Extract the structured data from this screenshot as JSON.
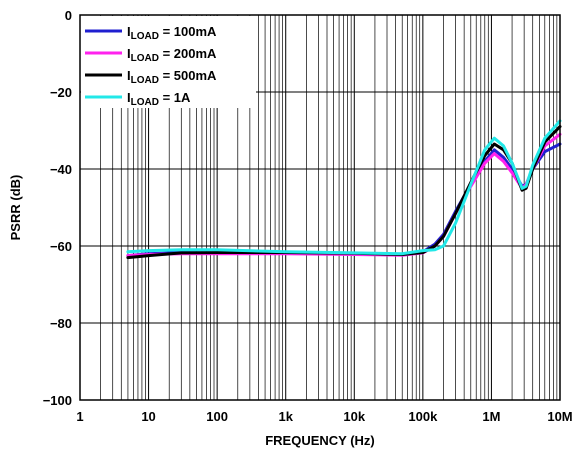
{
  "chart_data": {
    "type": "line",
    "title": "",
    "xlabel": "FREQUENCY (Hz)",
    "ylabel": "PSRR (dB)",
    "x_scale": "log",
    "xlim": [
      1,
      10000000
    ],
    "ylim": [
      -100,
      0
    ],
    "grid": true,
    "legend_position": "top-left",
    "x_ticks": [
      {
        "value": 1,
        "label": "1"
      },
      {
        "value": 10,
        "label": "10"
      },
      {
        "value": 100,
        "label": "100"
      },
      {
        "value": 1000,
        "label": "1k"
      },
      {
        "value": 10000,
        "label": "10k"
      },
      {
        "value": 100000,
        "label": "100k"
      },
      {
        "value": 1000000,
        "label": "1M"
      },
      {
        "value": 10000000,
        "label": "10M"
      }
    ],
    "y_ticks": [
      {
        "value": 0,
        "label": "0"
      },
      {
        "value": -20,
        "label": "−20"
      },
      {
        "value": -40,
        "label": "−40"
      },
      {
        "value": -60,
        "label": "−60"
      },
      {
        "value": -80,
        "label": "−80"
      },
      {
        "value": -100,
        "label": "−100"
      }
    ],
    "series": [
      {
        "name_main": "I",
        "name_sub": "LOAD",
        "name_rest": " = 100mA",
        "color": "#1f1fd0",
        "points": [
          [
            5,
            -62.5
          ],
          [
            10,
            -62
          ],
          [
            30,
            -61.7
          ],
          [
            100,
            -61.8
          ],
          [
            1000,
            -61.8
          ],
          [
            10000,
            -62
          ],
          [
            50000,
            -62.2
          ],
          [
            100000,
            -61.5
          ],
          [
            150000,
            -59.5
          ],
          [
            200000,
            -57
          ],
          [
            300000,
            -51
          ],
          [
            500000,
            -44
          ],
          [
            800000,
            -38
          ],
          [
            1100000,
            -35
          ],
          [
            1500000,
            -37
          ],
          [
            2000000,
            -40
          ],
          [
            2800000,
            -44.5
          ],
          [
            3200000,
            -44
          ],
          [
            4000000,
            -40
          ],
          [
            6000000,
            -35.5
          ],
          [
            10000000,
            -33.5
          ]
        ]
      },
      {
        "name_main": "I",
        "name_sub": "LOAD",
        "name_rest": " = 200mA",
        "color": "#ff22ee",
        "points": [
          [
            5,
            -62.5
          ],
          [
            10,
            -62.2
          ],
          [
            30,
            -62
          ],
          [
            100,
            -62
          ],
          [
            1000,
            -62
          ],
          [
            10000,
            -62.2
          ],
          [
            50000,
            -62.4
          ],
          [
            100000,
            -61.8
          ],
          [
            150000,
            -60
          ],
          [
            200000,
            -57.5
          ],
          [
            300000,
            -51.5
          ],
          [
            500000,
            -44.5
          ],
          [
            800000,
            -38.5
          ],
          [
            1100000,
            -36
          ],
          [
            1500000,
            -38
          ],
          [
            2000000,
            -41
          ],
          [
            2800000,
            -45
          ],
          [
            3200000,
            -44
          ],
          [
            4000000,
            -40
          ],
          [
            6000000,
            -34
          ],
          [
            10000000,
            -31
          ]
        ]
      },
      {
        "name_main": "I",
        "name_sub": "LOAD",
        "name_rest": " = 500mA",
        "color": "#000000",
        "points": [
          [
            5,
            -63
          ],
          [
            10,
            -62.5
          ],
          [
            30,
            -61.8
          ],
          [
            100,
            -61.7
          ],
          [
            1000,
            -61.7
          ],
          [
            10000,
            -61.9
          ],
          [
            50000,
            -62.2
          ],
          [
            100000,
            -61.7
          ],
          [
            150000,
            -60
          ],
          [
            200000,
            -57.5
          ],
          [
            300000,
            -51.5
          ],
          [
            500000,
            -43.5
          ],
          [
            800000,
            -36.5
          ],
          [
            1100000,
            -33.5
          ],
          [
            1500000,
            -35
          ],
          [
            2000000,
            -38.5
          ],
          [
            2800000,
            -45.5
          ],
          [
            3200000,
            -45
          ],
          [
            4000000,
            -40
          ],
          [
            6000000,
            -33
          ],
          [
            10000000,
            -29
          ]
        ]
      },
      {
        "name_main": "I",
        "name_sub": "LOAD",
        "name_rest": " = 1A",
        "color": "#22e8e8",
        "points": [
          [
            5,
            -61.5
          ],
          [
            10,
            -61.2
          ],
          [
            30,
            -61
          ],
          [
            100,
            -61
          ],
          [
            1000,
            -61.5
          ],
          [
            10000,
            -61.8
          ],
          [
            50000,
            -62
          ],
          [
            100000,
            -61.2
          ],
          [
            150000,
            -61
          ],
          [
            200000,
            -60
          ],
          [
            300000,
            -54
          ],
          [
            500000,
            -44
          ],
          [
            800000,
            -35
          ],
          [
            1100000,
            -32
          ],
          [
            1500000,
            -34
          ],
          [
            2000000,
            -38.5
          ],
          [
            2800000,
            -45
          ],
          [
            3200000,
            -44.5
          ],
          [
            4000000,
            -39
          ],
          [
            6000000,
            -32
          ],
          [
            10000000,
            -27.5
          ]
        ]
      }
    ]
  }
}
